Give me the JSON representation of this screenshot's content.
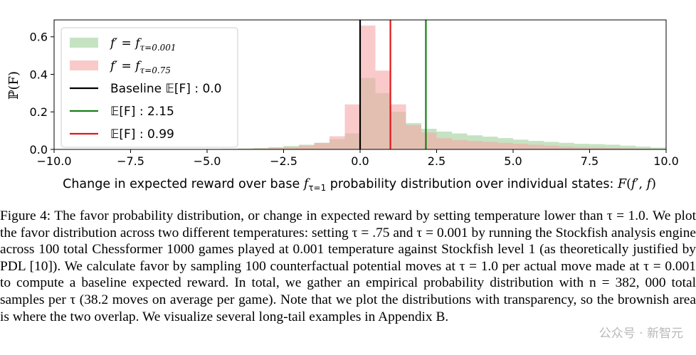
{
  "chart_data": {
    "type": "histogram",
    "xlabel": "Change in expected reward over base f_{τ=1} probability distribution over individual states: F(f′, f)",
    "ylabel": "ℙ(F)",
    "xlim": [
      -10.0,
      10.0
    ],
    "ylim": [
      0,
      0.69
    ],
    "xticks": [
      "−10.0",
      "−7.5",
      "−5.0",
      "−2.5",
      "0.0",
      "2.5",
      "5.0",
      "7.5",
      "10.0"
    ],
    "xtick_values": [
      -10,
      -7.5,
      -5,
      -2.5,
      0,
      2.5,
      5,
      7.5,
      10
    ],
    "yticks": [
      "0.0",
      "0.2",
      "0.4",
      "0.6"
    ],
    "ytick_values": [
      0,
      0.2,
      0.4,
      0.6
    ],
    "legend_position": "top-left",
    "bin_width": 0.5,
    "series": [
      {
        "name": "f′ = f_{τ=0.001}",
        "color": "#9fd09a",
        "bins_left": [
          -10,
          -9.5,
          -9,
          -8.5,
          -8,
          -7.5,
          -7,
          -6.5,
          -6,
          -5.5,
          -5,
          -4.5,
          -4,
          -3.5,
          -3,
          -2.5,
          -2,
          -1.5,
          -1,
          -0.5,
          0,
          0.5,
          1,
          1.5,
          2,
          2.5,
          3,
          3.5,
          4,
          4.5,
          5,
          5.5,
          6,
          6.5,
          7,
          7.5,
          8,
          8.5,
          9,
          9.5
        ],
        "values": [
          0,
          0,
          0,
          0,
          0,
          0,
          0,
          0,
          0,
          0,
          0.002,
          0.003,
          0.005,
          0.008,
          0.012,
          0.018,
          0.025,
          0.035,
          0.055,
          0.085,
          0.38,
          0.3,
          0.2,
          0.14,
          0.11,
          0.095,
          0.085,
          0.075,
          0.068,
          0.06,
          0.052,
          0.045,
          0.04,
          0.035,
          0.03,
          0.028,
          0.025,
          0.02,
          0.015,
          0.01
        ]
      },
      {
        "name": "f′ = f_{τ=0.75}",
        "color": "#f7a6a6",
        "bins_left": [
          -10,
          -9.5,
          -9,
          -8.5,
          -8,
          -7.5,
          -7,
          -6.5,
          -6,
          -5.5,
          -5,
          -4.5,
          -4,
          -3.5,
          -3,
          -2.5,
          -2,
          -1.5,
          -1,
          -0.5,
          0,
          0.5,
          1,
          1.5,
          2,
          2.5,
          3,
          3.5,
          4,
          4.5,
          5,
          5.5,
          6,
          6.5,
          7,
          7.5,
          8,
          8.5,
          9,
          9.5
        ],
        "values": [
          0,
          0,
          0,
          0,
          0,
          0,
          0,
          0,
          0,
          0,
          0.001,
          0.002,
          0.003,
          0.005,
          0.008,
          0.012,
          0.02,
          0.035,
          0.07,
          0.24,
          0.66,
          0.42,
          0.24,
          0.13,
          0.09,
          0.06,
          0.05,
          0.045,
          0.04,
          0.035,
          0.03,
          0.025,
          0.02,
          0.015,
          0.012,
          0.01,
          0.008,
          0.006,
          0.004,
          0.002
        ]
      }
    ],
    "vlines": [
      {
        "name": "Baseline 𝔼[F] : 0.0",
        "x": 0.0,
        "color": "#000000"
      },
      {
        "name": "𝔼[F] : 2.15",
        "x": 2.15,
        "color": "#158015"
      },
      {
        "name": "𝔼[F] : 0.99",
        "x": 0.99,
        "color": "#e01818"
      }
    ]
  },
  "legend": {
    "entries": [
      {
        "label": "f′ = f",
        "sub": "τ=0.001",
        "kind": "patch",
        "color": "#9fd09a"
      },
      {
        "label": "f′ = f",
        "sub": "τ=0.75",
        "kind": "patch",
        "color": "#f7a6a6"
      },
      {
        "label": "Baseline 𝔼[F] : 0.0",
        "kind": "line",
        "color": "#000000"
      },
      {
        "label": "𝔼[F] : 2.15",
        "kind": "line",
        "color": "#158015"
      },
      {
        "label": "𝔼[F] : 0.99",
        "kind": "line",
        "color": "#e01818"
      }
    ]
  },
  "caption": {
    "text": "Figure 4: The favor probability distribution, or change in expected reward by setting temperature lower than τ = 1.0. We plot the favor distribution across two different temperatures: setting τ = .75 and τ = 0.001 by running the Stockfish analysis engine across 100 total Chessformer 1000 games played at 0.001 temperature against Stockfish level 1 (as theoretically justified by PDL [10]). We calculate favor by sampling 100 counterfactual potential moves at τ = 1.0 per actual move made at τ = 0.001 to compute a baseline expected reward. In total, we gather an empirical probability distribution with n = 382, 000 total samples per τ (38.2 moves on average per game). Note that we plot the distributions with transparency, so the brownish area is where the two overlap. We visualize several long-tail examples in Appendix B."
  },
  "watermark": "公众号 · 新智元"
}
